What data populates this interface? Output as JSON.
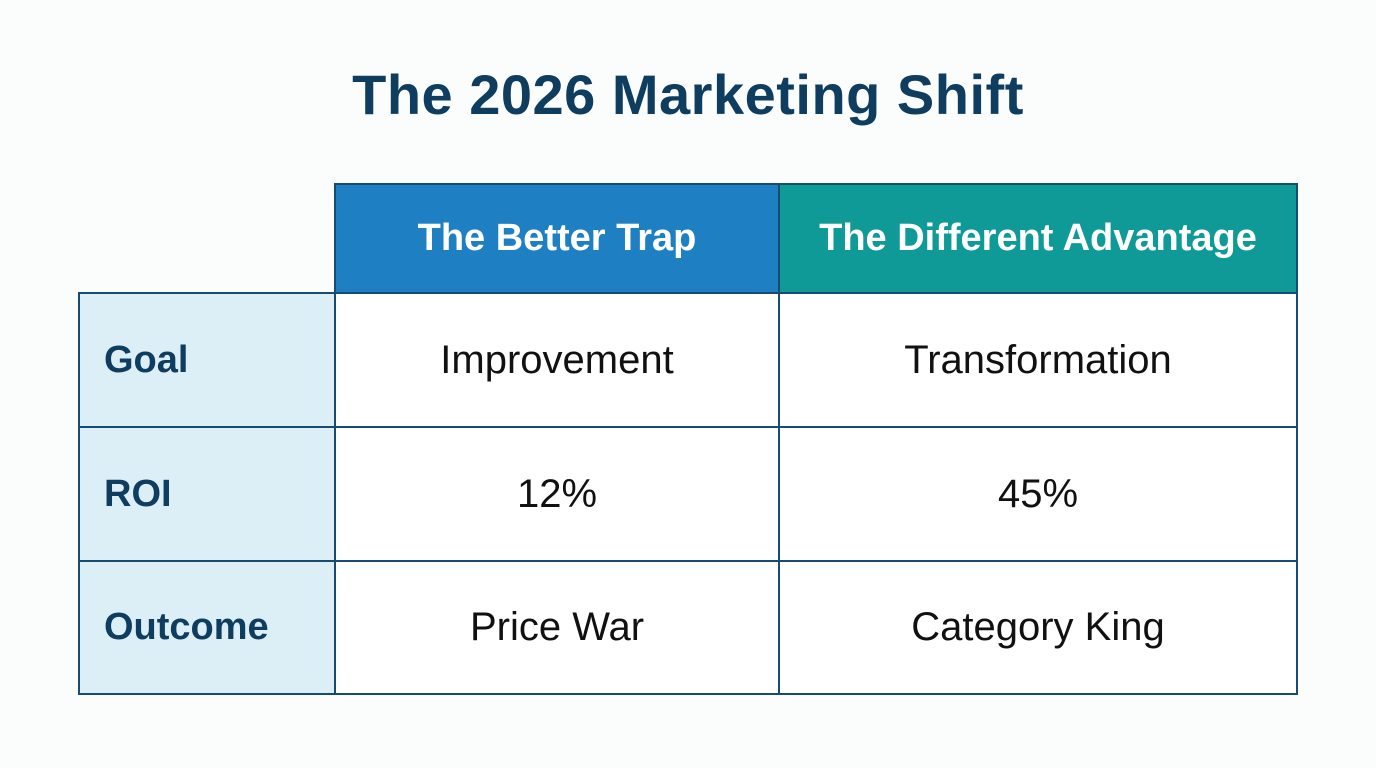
{
  "title": "The 2026 Marketing Shift",
  "table": {
    "columns": [
      "The Better Trap",
      "The Different Advantage"
    ],
    "rows": [
      {
        "label": "Goal",
        "values": [
          "Improvement",
          "Transformation"
        ]
      },
      {
        "label": "ROI",
        "values": [
          "12%",
          "45%"
        ]
      },
      {
        "label": "Outcome",
        "values": [
          "Price War",
          "Category King"
        ]
      }
    ]
  },
  "colors": {
    "title": "#0e3d5f",
    "header_better": "#1e80c3",
    "header_different": "#0f9a98",
    "label_bg": "#dceef6",
    "border": "#174c70"
  }
}
